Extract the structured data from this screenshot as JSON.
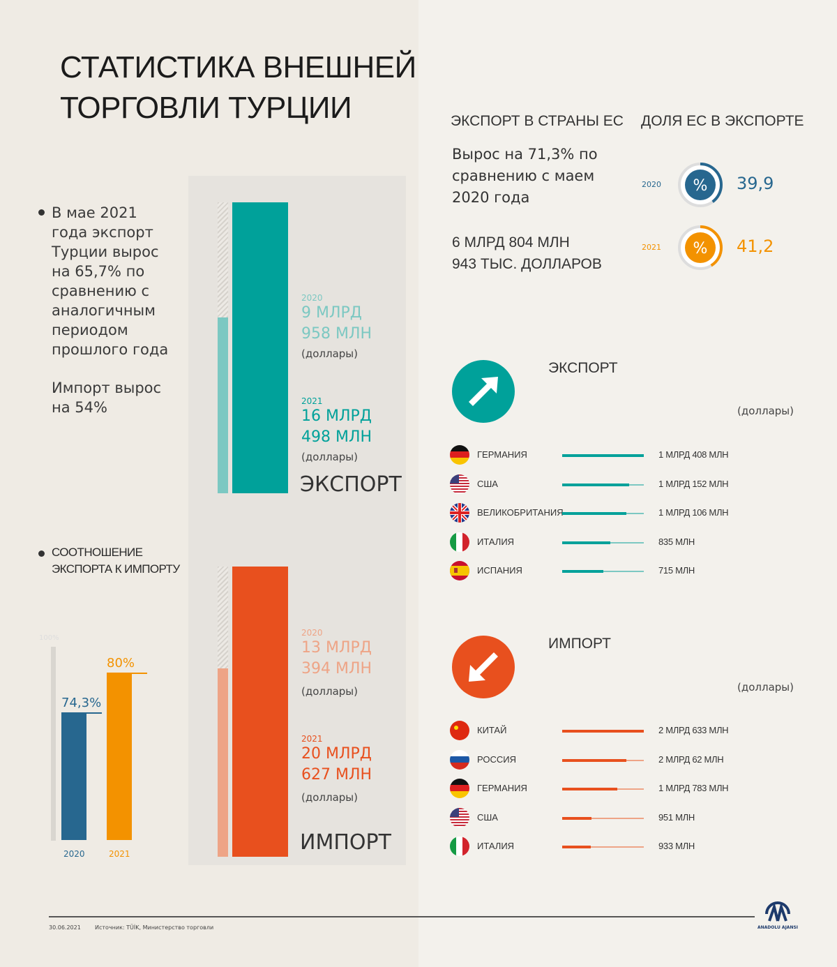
{
  "title": [
    "СТАТИСТИКА ВНЕШНЕЙ",
    "ТОРГОВЛИ ТУРЦИИ"
  ],
  "left_text": {
    "export_note": [
      "В мае 2021",
      "года экспорт",
      "Турции вырос",
      "на 65,7% по",
      "сравнению с",
      "аналогичным",
      "периодом",
      "прошлого года"
    ],
    "import_note": [
      "Импорт вырос",
      "на 54%"
    ],
    "ratio_title": [
      "СООТНОШЕНИЕ",
      "ЭКСПОРТА К ИМПОРТУ"
    ]
  },
  "colors": {
    "teal": "#00a19a",
    "teal_light": "#7cc8c2",
    "orange_red": "#e8501e",
    "salmon": "#eea486",
    "blue": "#27678f",
    "amber": "#f39200"
  },
  "chart_data": [
    {
      "type": "bar",
      "title": "ЭКСПОРТ",
      "unit": "(доллары)",
      "categories": [
        "2020",
        "2021"
      ],
      "values": [
        9958,
        16498
      ],
      "labels": [
        [
          "9 МЛРД",
          "958 МЛН"
        ],
        [
          "16 МЛРД",
          "498 МЛН"
        ]
      ]
    },
    {
      "type": "bar",
      "title": "ИМПОРТ",
      "unit": "(доллары)",
      "categories": [
        "2020",
        "2021"
      ],
      "values": [
        13394,
        20627
      ],
      "labels": [
        [
          "13 МЛРД",
          "394 МЛН"
        ],
        [
          "20 МЛРД",
          "627 МЛН"
        ]
      ]
    },
    {
      "type": "bar",
      "title": "СООТНОШЕНИЕ ЭКСПОРТА К ИМПОРТУ",
      "categories": [
        "2020",
        "2021"
      ],
      "values": [
        74.3,
        80
      ],
      "labels": [
        "74,3%",
        "80%"
      ],
      "ylim": [
        0,
        100
      ],
      "max_label": "100%"
    },
    {
      "type": "pie",
      "title": "ДОЛЯ ЕС В ЭКСПОРТЕ",
      "categories": [
        "2020",
        "2021"
      ],
      "values": [
        39.9,
        41.2
      ],
      "labels": [
        "39,9",
        "41,2"
      ],
      "icon": "%"
    },
    {
      "type": "bar",
      "title": "ЭКСПОРТ",
      "unit": "(доллары)",
      "categories": [
        "ГЕРМАНИЯ",
        "США",
        "ВЕЛИКОБРИТАНИЯ",
        "ИТАЛИЯ",
        "ИСПАНИЯ"
      ],
      "values": [
        1408,
        1152,
        1106,
        835,
        715
      ],
      "labels": [
        "1 МЛРД 408 МЛН",
        "1 МЛРД 152 МЛН",
        "1 МЛРД 106 МЛН",
        "835 МЛН",
        "715 МЛН"
      ],
      "flags": [
        "de",
        "us",
        "gb",
        "it",
        "es"
      ]
    },
    {
      "type": "bar",
      "title": "ИМПОРТ",
      "unit": "(доллары)",
      "categories": [
        "КИТАЙ",
        "РОССИЯ",
        "ГЕРМАНИЯ",
        "США",
        "ИТАЛИЯ"
      ],
      "values": [
        2633,
        2062,
        1783,
        951,
        933
      ],
      "labels": [
        "2 МЛРД 633 МЛН",
        "2 МЛРД 62 МЛН",
        "1 МЛРД 783 МЛН",
        "951 МЛН",
        "933 МЛН"
      ],
      "flags": [
        "cn",
        "ru",
        "de",
        "us",
        "it"
      ]
    }
  ],
  "eu": {
    "header": "ЭКСПОРТ В СТРАНЫ ЕС",
    "growth": [
      "Вырос на 71,3% по",
      "сравнению с маем",
      "2020 года"
    ],
    "amount": [
      "6 МЛРД 804 МЛН",
      "943 ТЫС. ДОЛЛАРОВ"
    ]
  },
  "footer": {
    "date": "30.06.2021",
    "source": "Источник: TÜİK, Министерство торговли",
    "logo": "ANADOLU AJANSI"
  }
}
